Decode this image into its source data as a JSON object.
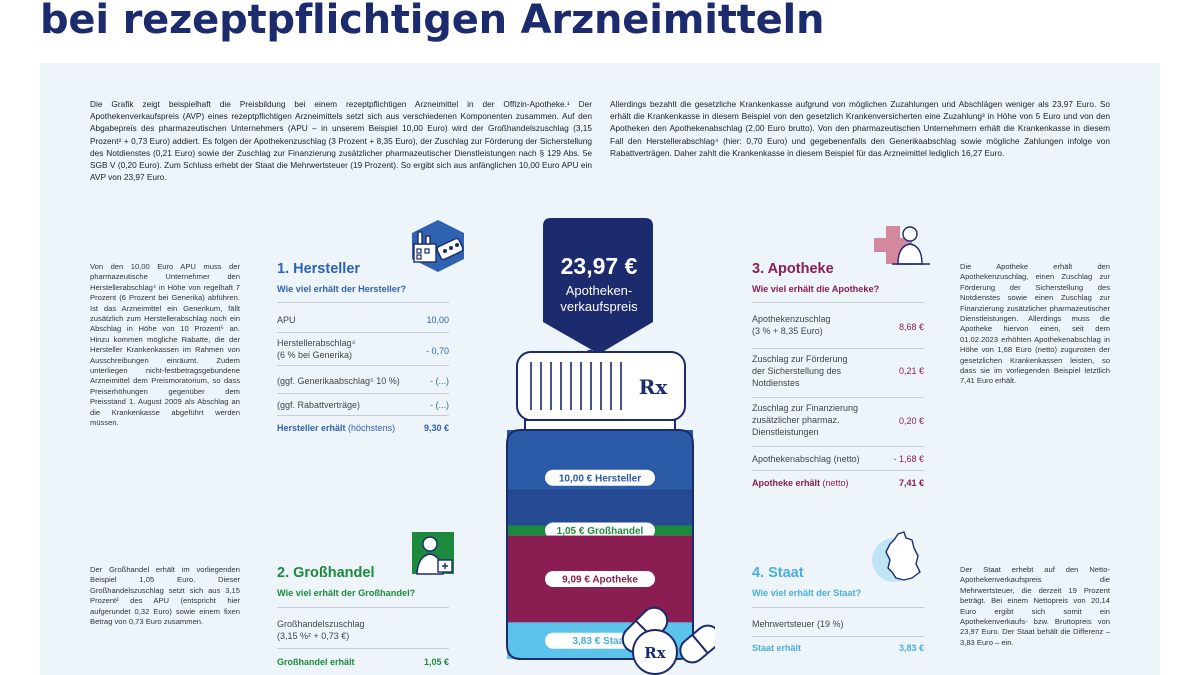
{
  "page": {
    "title": "bei rezeptpflichtigen Arzneimitteln"
  },
  "intro": {
    "left": "Die Grafik zeigt beispielhaft die Preisbildung bei einem rezeptpflichtigen Arzneimittel in der Offizin-Apotheke.¹ Der Apothekenverkaufspreis (AVP) eines rezeptpflichtigen Arzneimittels setzt sich aus verschiedenen Komponenten zusammen. Auf den Abgabepreis des pharmazeutischen Unternehmers (APU – in unserem Beispiel 10,00 Euro) wird der Großhandelszuschlag (3,15 Prozent² + 0,73 Euro) addiert. Es folgen der Apothekenzuschlag (3 Prozent + 8,35 Euro), der Zuschlag zur Förderung der Sicherstellung des Notdienstes (0,21 Euro) sowie der Zuschlag zur Finanzierung zusätzlicher pharmazeutischer Dienstleistungen nach § 129 Abs. 5e SGB V (0,20 Euro). Zum Schluss erhebt der Staat die Mehrwertsteuer (19 Prozent). So ergibt sich aus anfänglichen 10,00 Euro APU ein AVP von 23,97 Euro.",
    "right": "Allerdings bezahlt die gesetzliche Krankenkasse aufgrund von möglichen Zuzahlungen und Abschlägen weniger als 23,97 Euro. So erhält die Krankenkasse in diesem Beispiel von den gesetzlich Krankenversicherten eine Zuzahlung³ in Höhe von 5 Euro und von den Apotheken den Apothekenabschlag (2,00 Euro brutto). Von den pharmazeutischen Unternehmern erhält die Krankenkasse in diesem Fall den Herstellerabschlag⁴ (hier: 0,70 Euro) und gegebenenfalls den Generikaabschlag sowie mögliche Zahlungen infolge von Rabattverträgen. Daher zahlt die Krankenkasse in diesem Beispiel für das Arzneimittel lediglich 16,27 Euro."
  },
  "side_notes": {
    "hersteller": "Von den 10,00 Euro APU muss der pharmazeutische Unternehmer den Herstellerabschlag⁴ in Höhe von regelhaft 7 Prozent (6 Prozent bei Generika) abführen. Ist das Arzneimittel ein Generikum, fällt zusätzlich zum Herstellerabschlag noch ein Abschlag in Höhe von 10 Prozent⁵ an. Hinzu kommen mögliche Rabatte, die der Hersteller Krankenkassen im Rahmen von Ausschreibungen einräumt. Zudem unterliegen nicht-festbetragsgebundene Arzneimittel dem Preismoratorium, so dass Preiserhöhungen gegenüber dem Preisstand 1. August 2009 als Abschlag an die Krankenkasse abgeführt werden müssen.",
    "grosshandel": "Der Großhandel erhält im vorliegenden Beispiel 1,05 Euro. Dieser Großhandelszuschlag setzt sich aus 3,15 Prozent² des APU (entspricht hier aufgerundet 0,32 Euro) sowie einem fixen Betrag von 0,73 Euro zusammen.",
    "apotheke": "Die Apotheke erhält den Apothekenzuschlag, einen Zuschlag zur Förderung der Sicherstellung des Notdienstes sowie einen Zuschlag zur Finanzierung zusätzlicher pharmazeutischer Dienstleistungen. Allerdings muss die Apotheke hiervon einen, seit dem 01.02.2023 erhöhten Apothekenabschlag in Höhe von 1,68 Euro (netto) zugunsten der gesetzlichen Krankenkassen leisten, so dass sie im vorliegenden Beispiel letztlich 7,41 Euro erhält.",
    "staat": "Der Staat erhebt auf den Netto-Apothekenverkaufspreis die Mehrwertsteuer, die derzeit 19 Prozent beträgt. Bei einem Nettopreis von 20,14 Euro ergibt sich somit ein Apothekenverkaufs- bzw. Bruttopreis von 23,97 Euro. Der Staat behält die Differenz – 3,83 Euro – ein."
  },
  "sections": {
    "hersteller": {
      "title": "1. Hersteller",
      "question": "Wie viel erhält der Hersteller?",
      "rows": [
        {
          "label": "APU",
          "value": "10,00"
        },
        {
          "label": "Herstellerabschlag⁴\n(6 % bei Generika)",
          "value": "- 0,70"
        },
        {
          "label": "(ggf. Generikaabschlag⁵ 10 %)",
          "value": "- (...)"
        },
        {
          "label": "(ggf. Rabattverträge)",
          "value": "- (...)"
        }
      ],
      "total": {
        "label_bold": "Hersteller erhält",
        "label_rest": " (höchstens)",
        "value": "9,30 €"
      }
    },
    "grosshandel": {
      "title": "2. Großhandel",
      "question": "Wie viel erhält der Großhandel?",
      "rows": [
        {
          "label": "Großhandelszuschlag\n(3,15 %² + 0,73 €)",
          "value": ""
        }
      ],
      "total": {
        "label_bold": "Großhandel erhält",
        "label_rest": "",
        "value": "1,05 €"
      }
    },
    "apotheke": {
      "title": "3. Apotheke",
      "question": "Wie viel erhält die Apotheke?",
      "rows": [
        {
          "label": "Apothekenzuschlag\n(3 % + 8,35 Euro)",
          "value": "8,68 €"
        },
        {
          "label": "Zuschlag zur Förderung\nder Sicherstellung des\nNotdienstes",
          "value": "0,21 €"
        },
        {
          "label": "Zuschlag zur Finanzierung\nzusätzlicher pharmaz.\nDienstleistungen",
          "value": "0,20 €"
        },
        {
          "label": "Apothekenabschlag (netto)",
          "value": "- 1,68 €"
        }
      ],
      "total": {
        "label_bold": "Apotheke erhält",
        "label_rest": " (netto)",
        "value": "7,41 €"
      }
    },
    "staat": {
      "title": "4. Staat",
      "question": "Wie viel erhält der Staat?",
      "rows": [
        {
          "label": "Mehrwertsteuer (19 %)",
          "value": ""
        }
      ],
      "total": {
        "label_bold": "Staat erhält",
        "label_rest": "",
        "value": "3,83 €"
      }
    }
  },
  "price_tag": {
    "price": "23,97 €",
    "label_line1": "Apotheken-",
    "label_line2": "verkaufspreis"
  },
  "bottle": {
    "rx_label": "Rx",
    "pill_label": "Rx"
  },
  "chart_data": {
    "type": "bar",
    "title": "",
    "total": 23.97,
    "unit": "€",
    "stacked": true,
    "categories": [
      "Hersteller",
      "Großhandel",
      "Apotheke",
      "Staat"
    ],
    "values": [
      10.0,
      1.05,
      9.09,
      3.83
    ],
    "labels": [
      "10,00 € Hersteller",
      "1,05 € Großhandel",
      "9,09 € Apotheke",
      "3,83 € Staat"
    ],
    "colors": [
      "#2a5aa8",
      "#1b8a3c",
      "#8a1e52",
      "#5cc3ea"
    ]
  },
  "colors": {
    "title": "#1c2a6e",
    "hersteller": "#2f62b0",
    "grosshandel": "#1b8a3c",
    "apotheke": "#8a1e52",
    "staat": "#4aaedc",
    "panel": "#edf5fb",
    "navy": "#1c2a6e"
  },
  "icons": [
    "factory-pills-icon",
    "warehouse-worker-icon",
    "pharmacist-icon",
    "germany-map-icon",
    "pill-capsule-icon"
  ]
}
